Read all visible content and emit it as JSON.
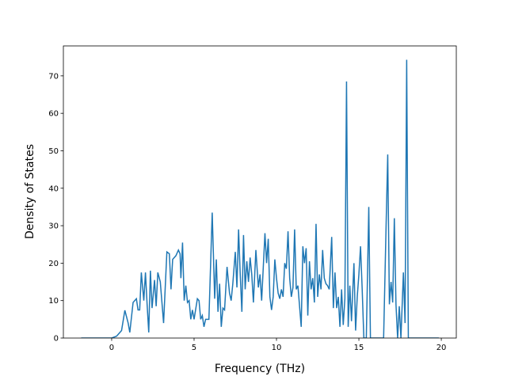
{
  "chart_data": {
    "type": "line",
    "x_label": "Frequency (THz)",
    "y_label": "Density of States",
    "x": [
      -1.85,
      0,
      0.3,
      0.6,
      0.8,
      1.0,
      1.1,
      1.3,
      1.5,
      1.6,
      1.7,
      1.8,
      1.95,
      2.05,
      2.15,
      2.25,
      2.35,
      2.45,
      2.6,
      2.7,
      2.8,
      2.95,
      3.15,
      3.35,
      3.5,
      3.6,
      3.7,
      3.9,
      4.05,
      4.15,
      4.2,
      4.3,
      4.4,
      4.5,
      4.6,
      4.7,
      4.8,
      4.9,
      5.0,
      5.2,
      5.3,
      5.4,
      5.5,
      5.6,
      5.7,
      5.9,
      6.1,
      6.25,
      6.35,
      6.45,
      6.55,
      6.65,
      6.75,
      6.85,
      7.0,
      7.15,
      7.25,
      7.35,
      7.5,
      7.6,
      7.7,
      7.8,
      7.9,
      8.0,
      8.1,
      8.2,
      8.3,
      8.4,
      8.5,
      8.6,
      8.75,
      8.9,
      9.0,
      9.1,
      9.2,
      9.3,
      9.4,
      9.5,
      9.6,
      9.7,
      9.8,
      9.9,
      10.0,
      10.1,
      10.2,
      10.3,
      10.4,
      10.5,
      10.6,
      10.7,
      10.8,
      10.9,
      11.0,
      11.1,
      11.2,
      11.3,
      11.4,
      11.5,
      11.6,
      11.7,
      11.8,
      11.9,
      12.0,
      12.1,
      12.2,
      12.3,
      12.4,
      12.5,
      12.6,
      12.7,
      12.8,
      12.9,
      13.0,
      13.1,
      13.2,
      13.35,
      13.45,
      13.55,
      13.65,
      13.75,
      13.85,
      13.95,
      14.05,
      14.15,
      14.25,
      14.35,
      14.45,
      14.55,
      14.7,
      14.8,
      14.9,
      15.0,
      15.1,
      15.2,
      15.3,
      15.45,
      15.6,
      15.7,
      16.0,
      16.2,
      16.5,
      16.65,
      16.75,
      16.85,
      16.95,
      17.05,
      17.15,
      17.25,
      17.35,
      17.45,
      17.55,
      17.7,
      17.8,
      17.9,
      18.0,
      19.85
    ],
    "series": [
      {
        "color": "#1f77b4",
        "values": [
          0,
          0,
          0.5,
          2,
          7.4,
          4,
          1.5,
          9.5,
          10.5,
          7.5,
          7.5,
          17.5,
          10,
          17.5,
          9,
          1.5,
          18,
          8,
          15.5,
          8.5,
          17.5,
          15,
          4,
          23,
          22.5,
          13,
          21,
          22,
          23.5,
          22.5,
          16,
          25.5,
          10,
          14,
          9.5,
          10,
          5,
          7.5,
          5,
          10.5,
          10,
          5,
          6,
          3,
          5,
          5,
          33.5,
          10.5,
          21,
          7,
          14.5,
          3,
          8,
          7.5,
          19,
          12,
          10,
          14.5,
          23,
          13.5,
          29,
          17,
          7,
          27.5,
          13,
          20.5,
          15,
          21.5,
          17,
          9.5,
          23.5,
          13.5,
          17,
          10,
          19,
          28,
          20,
          26.5,
          11,
          7.5,
          11,
          21,
          16,
          12,
          10.5,
          13,
          11,
          20,
          18.5,
          28.5,
          16,
          11,
          13.5,
          29,
          13,
          14,
          8.5,
          3,
          24.5,
          20,
          24,
          6,
          20.5,
          13,
          16,
          9.5,
          30.5,
          11,
          17,
          13,
          23.5,
          16,
          14.5,
          14,
          13,
          27,
          8,
          17.5,
          8,
          11,
          3,
          13,
          3.5,
          10.5,
          68.5,
          3,
          14,
          4.5,
          20,
          2,
          11,
          17,
          24.5,
          13,
          0,
          0,
          35,
          0,
          0,
          0,
          0,
          30,
          49,
          9,
          15,
          9.5,
          32,
          9,
          0,
          8.5,
          0,
          17.5,
          4,
          74.3,
          0,
          0
        ]
      }
    ],
    "xlim": [
      -2.93,
      20.91
    ],
    "ylim": [
      0,
      78
    ],
    "xticks": [
      0,
      5,
      10,
      15,
      20
    ],
    "yticks": [
      0,
      10,
      20,
      30,
      40,
      50,
      60,
      70
    ]
  }
}
